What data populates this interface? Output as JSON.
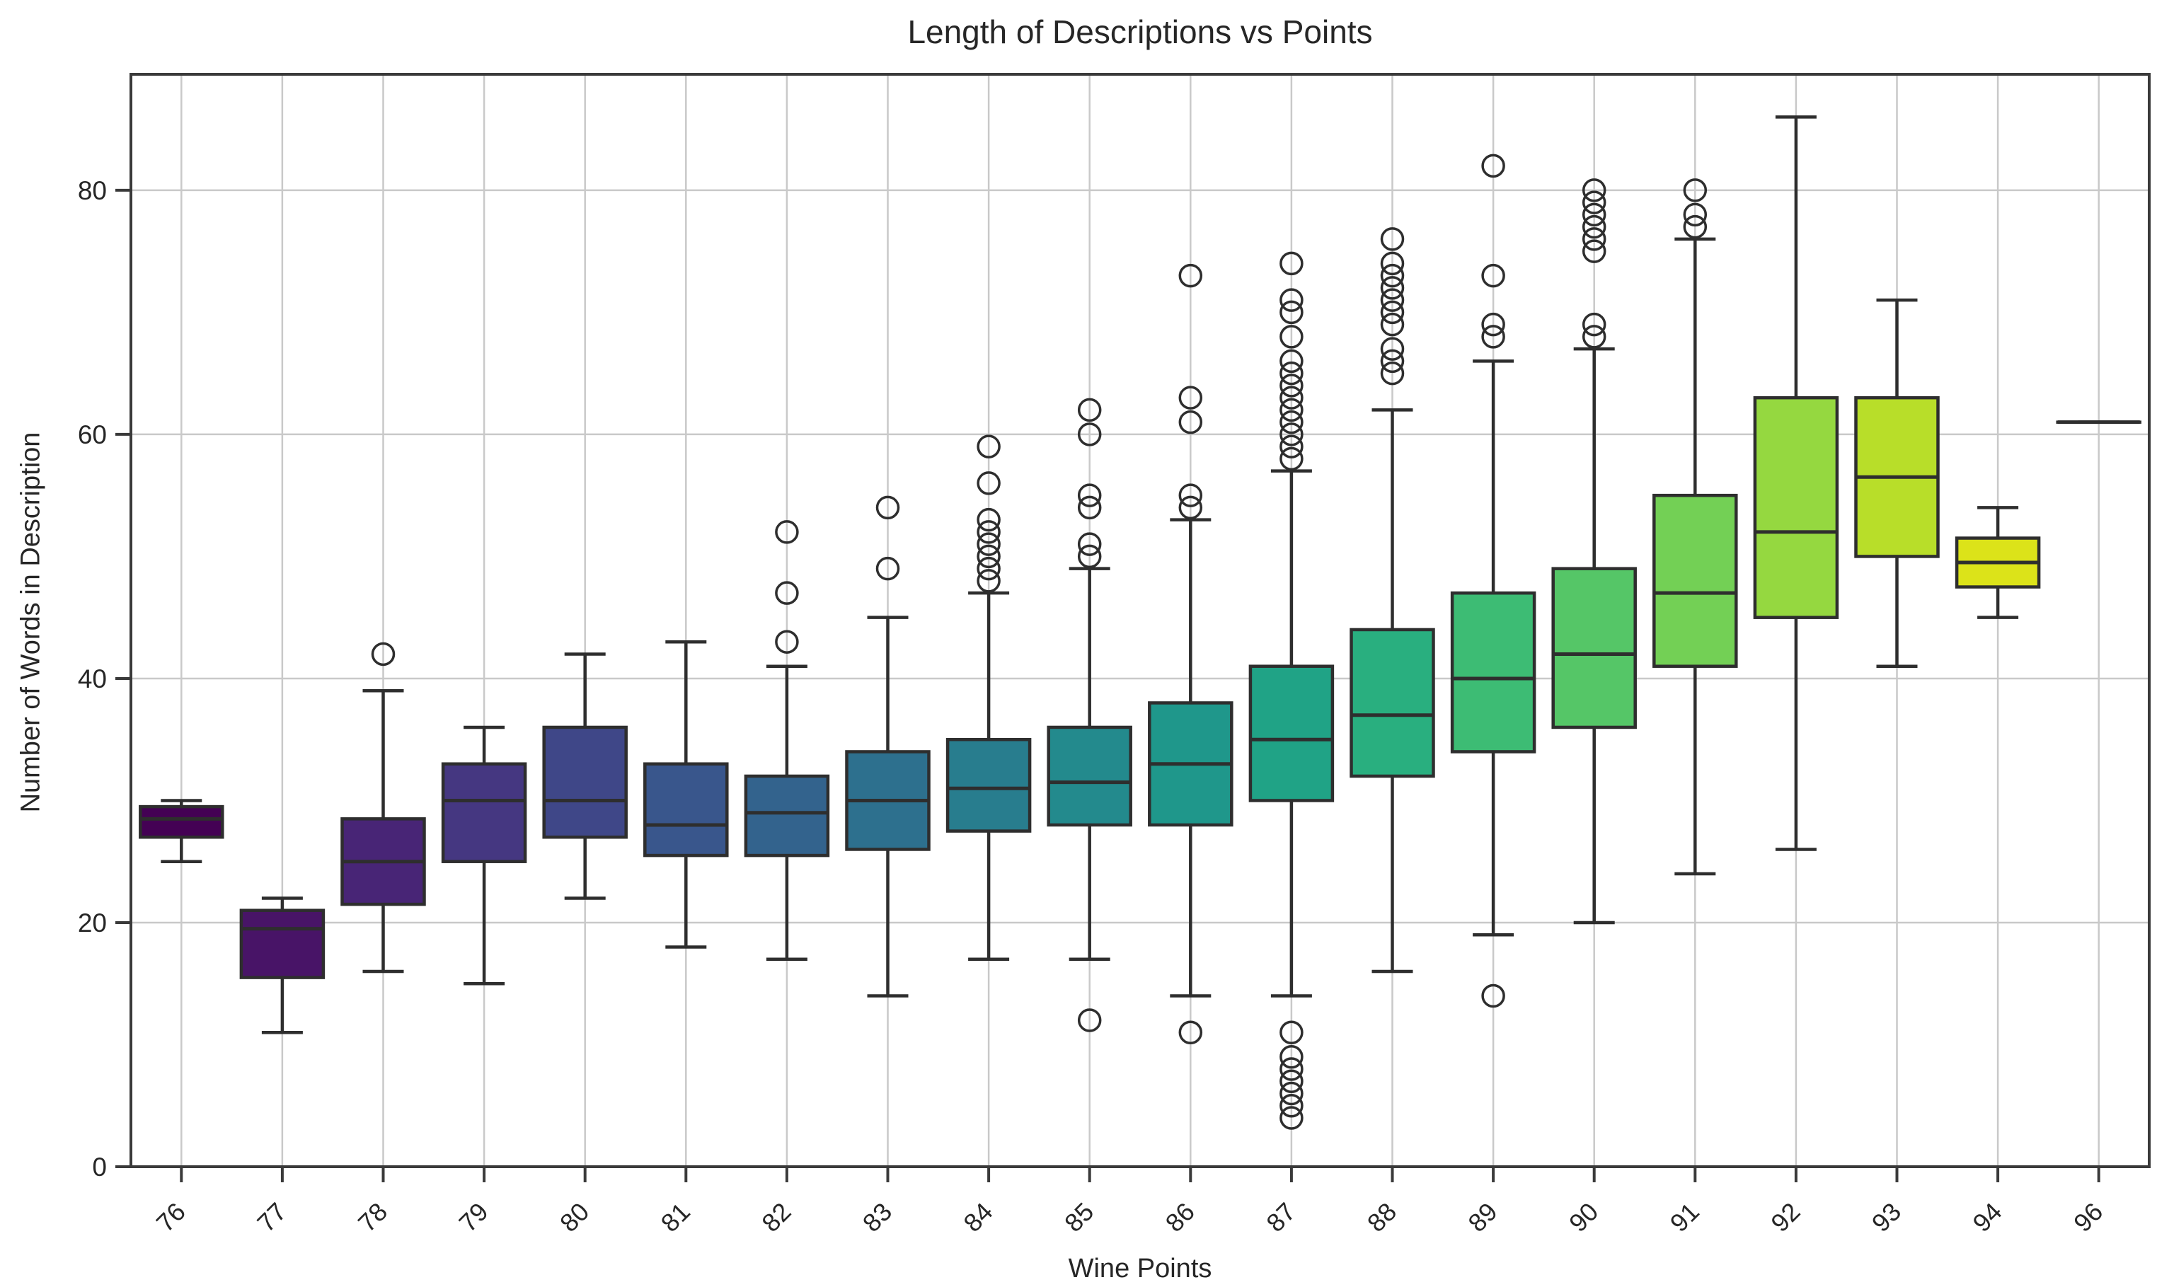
{
  "chart_data": {
    "type": "box",
    "title": "Length of Descriptions vs Points",
    "xlabel": "Wine Points",
    "ylabel": "Number of Words in Description",
    "ylim": [
      0,
      89.5
    ],
    "yticks": [
      0,
      20,
      40,
      60,
      80
    ],
    "grid": true,
    "legend": "none",
    "palette": "viridis",
    "background": "#ffffff",
    "gridline_color": "#c9c9c9",
    "spine_color": "#3a3a3a",
    "element_color": "#2e2e2e",
    "text_color": "#262626",
    "categories": [
      "76",
      "77",
      "78",
      "79",
      "80",
      "81",
      "82",
      "83",
      "84",
      "85",
      "86",
      "87",
      "88",
      "89",
      "90",
      "91",
      "92",
      "93",
      "94",
      "96"
    ],
    "series": [
      {
        "label": "76",
        "color": "#440154",
        "whislo": 25,
        "q1": 27,
        "med": 28.5,
        "q3": 29.5,
        "whishi": 30,
        "fliers": []
      },
      {
        "label": "77",
        "color": "#481467",
        "whislo": 11,
        "q1": 15.5,
        "med": 19.5,
        "q3": 21,
        "whishi": 22,
        "fliers": []
      },
      {
        "label": "78",
        "color": "#482576",
        "whislo": 16,
        "q1": 21.5,
        "med": 25,
        "q3": 28.5,
        "whishi": 39,
        "fliers": [
          42
        ]
      },
      {
        "label": "79",
        "color": "#453781",
        "whislo": 15,
        "q1": 25,
        "med": 30,
        "q3": 33,
        "whishi": 36,
        "fliers": []
      },
      {
        "label": "80",
        "color": "#3f4788",
        "whislo": 22,
        "q1": 27,
        "med": 30,
        "q3": 36,
        "whishi": 42,
        "fliers": []
      },
      {
        "label": "81",
        "color": "#39568c",
        "whislo": 18,
        "q1": 25.5,
        "med": 28,
        "q3": 33,
        "whishi": 43,
        "fliers": []
      },
      {
        "label": "82",
        "color": "#33638d",
        "whislo": 17,
        "q1": 25.5,
        "med": 29,
        "q3": 32,
        "whishi": 41,
        "fliers": [
          43,
          47,
          52
        ]
      },
      {
        "label": "83",
        "color": "#2d708e",
        "whislo": 14,
        "q1": 26,
        "med": 30,
        "q3": 34,
        "whishi": 45,
        "fliers": [
          49,
          54
        ]
      },
      {
        "label": "84",
        "color": "#287d8e",
        "whislo": 17,
        "q1": 27.5,
        "med": 31,
        "q3": 35,
        "whishi": 47,
        "fliers": [
          48,
          49,
          50,
          51,
          52,
          53,
          56,
          59
        ]
      },
      {
        "label": "85",
        "color": "#238a8d",
        "whislo": 17,
        "q1": 28,
        "med": 31.5,
        "q3": 36,
        "whishi": 49,
        "fliers": [
          12,
          50,
          51,
          54,
          55,
          60,
          62
        ]
      },
      {
        "label": "86",
        "color": "#1f978b",
        "whislo": 14,
        "q1": 28,
        "med": 33,
        "q3": 38,
        "whishi": 53,
        "fliers": [
          11,
          54,
          55,
          61,
          63,
          73
        ]
      },
      {
        "label": "87",
        "color": "#20a386",
        "whislo": 14,
        "q1": 30,
        "med": 35,
        "q3": 41,
        "whishi": 57,
        "fliers": [
          4,
          5,
          6,
          7,
          8,
          9,
          11,
          58,
          59,
          60,
          61,
          62,
          63,
          64,
          65,
          66,
          68,
          70,
          71,
          74
        ]
      },
      {
        "label": "88",
        "color": "#29af7f",
        "whislo": 16,
        "q1": 32,
        "med": 37,
        "q3": 44,
        "whishi": 62,
        "fliers": [
          65,
          66,
          67,
          69,
          70,
          71,
          72,
          73,
          74,
          76
        ]
      },
      {
        "label": "89",
        "color": "#3dbc74",
        "whislo": 19,
        "q1": 34,
        "med": 40,
        "q3": 47,
        "whishi": 66,
        "fliers": [
          14,
          68,
          69,
          73,
          82
        ]
      },
      {
        "label": "90",
        "color": "#55c667",
        "whislo": 20,
        "q1": 36,
        "med": 42,
        "q3": 49,
        "whishi": 67,
        "fliers": [
          68,
          69,
          75,
          76,
          77,
          78,
          79,
          80
        ]
      },
      {
        "label": "91",
        "color": "#73d055",
        "whislo": 24,
        "q1": 41,
        "med": 47,
        "q3": 55,
        "whishi": 76,
        "fliers": [
          77,
          78,
          80
        ]
      },
      {
        "label": "92",
        "color": "#95d840",
        "whislo": 26,
        "q1": 45,
        "med": 52,
        "q3": 63,
        "whishi": 86,
        "fliers": []
      },
      {
        "label": "93",
        "color": "#b8de29",
        "whislo": 41,
        "q1": 50,
        "med": 56.5,
        "q3": 63,
        "whishi": 71,
        "fliers": []
      },
      {
        "label": "94",
        "color": "#dce319",
        "whislo": 45,
        "q1": 47.5,
        "med": 49.5,
        "q3": 51.5,
        "whishi": 54,
        "fliers": []
      },
      {
        "label": "96",
        "color": "#fde725",
        "whislo": 61,
        "q1": 61,
        "med": 61,
        "q3": 61,
        "whishi": 61,
        "fliers": []
      }
    ]
  }
}
